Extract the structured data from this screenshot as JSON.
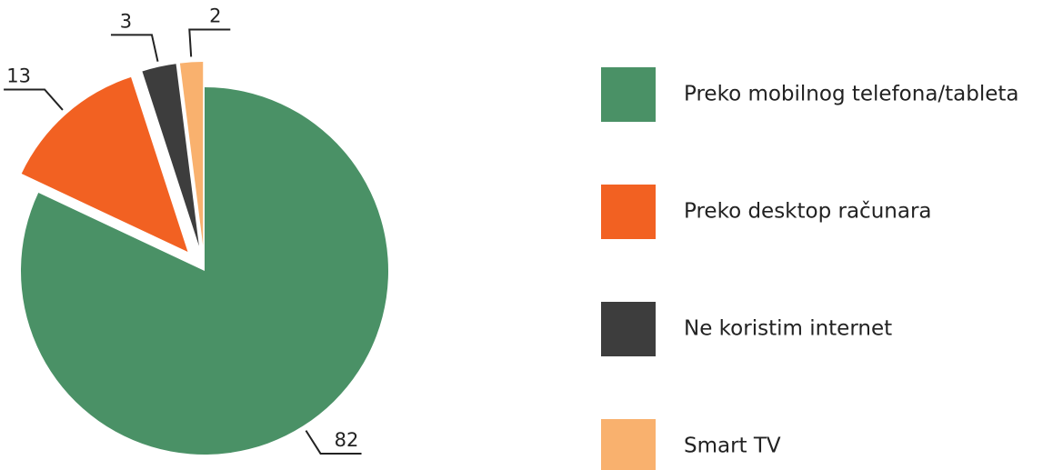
{
  "chart_data": {
    "type": "pie",
    "categories": [
      "Preko mobilnog telefona/tableta",
      "Preko desktop računara",
      "Ne koristim internet",
      "Smart TV"
    ],
    "values": [
      82,
      13,
      3,
      2
    ],
    "colors": [
      "#4a9166",
      "#f26122",
      "#3d3d3d",
      "#f9b16e"
    ]
  }
}
